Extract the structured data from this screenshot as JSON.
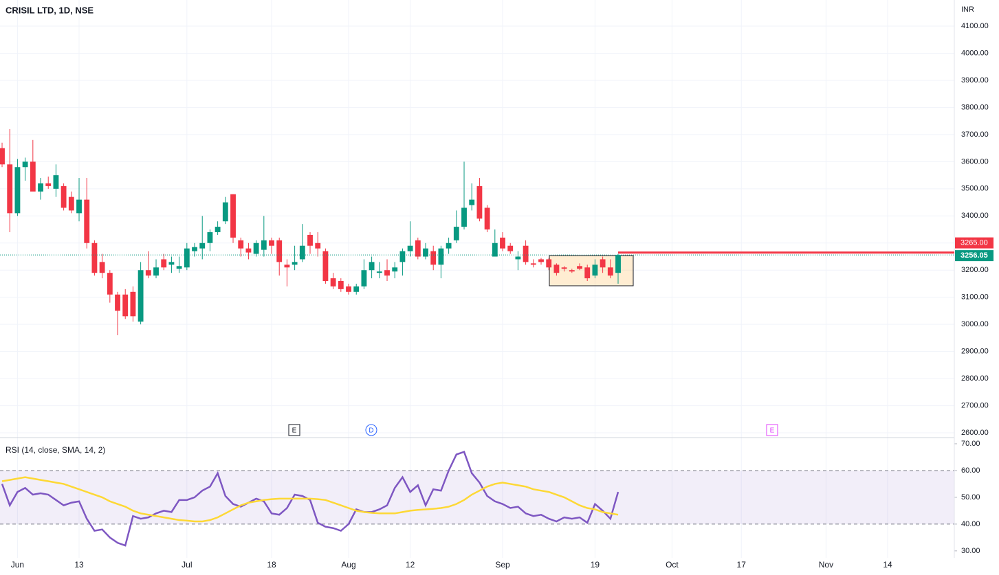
{
  "chart_data": {
    "type": "candlestick",
    "title": "CRISIL LTD, 1D, NSE",
    "currency": "INR",
    "colors": {
      "up": "#089981",
      "down": "#f23645"
    },
    "candles": {
      "open": [
        3650,
        3590,
        3410,
        3580,
        3600,
        3490,
        3520,
        3500,
        3510,
        3470,
        3410,
        3460,
        3300,
        3230,
        3190,
        3110,
        3110,
        3120,
        3010,
        3200,
        3180,
        3240,
        3220,
        3205,
        3210,
        3270,
        3280,
        3300,
        3340,
        3380,
        3480,
        3310,
        3280,
        3260,
        3275,
        3310,
        3310,
        3220,
        3220,
        3240,
        3330,
        3300,
        3270,
        3170,
        3160,
        3140,
        3120,
        3140,
        3200,
        3190,
        3200,
        3195,
        3230,
        3270,
        3310,
        3250,
        3270,
        3220,
        3280,
        3310,
        3360,
        3440,
        3510,
        3430,
        3250,
        3320,
        3290,
        3240,
        3290,
        3225,
        3240,
        3240,
        3220,
        3210,
        3200,
        3215,
        3210,
        3180,
        3240,
        3210,
        3190
      ],
      "high": [
        3670,
        3720,
        3610,
        3615,
        3680,
        3540,
        3545,
        3590,
        3520,
        3490,
        3540,
        3540,
        3310,
        3260,
        3200,
        3120,
        3130,
        3140,
        3230,
        3270,
        3240,
        3260,
        3250,
        3250,
        3300,
        3300,
        3400,
        3350,
        3380,
        3470,
        3480,
        3320,
        3300,
        3310,
        3400,
        3320,
        3320,
        3240,
        3290,
        3370,
        3340,
        3340,
        3280,
        3190,
        3170,
        3150,
        3150,
        3240,
        3250,
        3230,
        3240,
        3230,
        3280,
        3380,
        3320,
        3300,
        3290,
        3290,
        3320,
        3420,
        3600,
        3520,
        3540,
        3440,
        3350,
        3340,
        3300,
        3270,
        3310,
        3240,
        3245,
        3245,
        3225,
        3215,
        3205,
        3225,
        3220,
        3240,
        3250,
        3240,
        3260
      ],
      "low": [
        3580,
        3340,
        3400,
        3530,
        3500,
        3460,
        3500,
        3470,
        3420,
        3410,
        3380,
        3280,
        3180,
        3170,
        3080,
        2960,
        3020,
        3010,
        3000,
        3170,
        3170,
        3200,
        3190,
        3190,
        3200,
        3250,
        3240,
        3270,
        3330,
        3370,
        3300,
        3250,
        3240,
        3250,
        3250,
        3260,
        3180,
        3140,
        3200,
        3230,
        3260,
        3250,
        3150,
        3130,
        3120,
        3110,
        3110,
        3130,
        3170,
        3170,
        3160,
        3170,
        3180,
        3250,
        3240,
        3240,
        3200,
        3170,
        3260,
        3300,
        3350,
        3420,
        3380,
        3340,
        3250,
        3270,
        3260,
        3200,
        3220,
        3210,
        3220,
        3200,
        3180,
        3195,
        3190,
        3200,
        3160,
        3170,
        3190,
        3170,
        3150
      ],
      "close": [
        3590,
        3410,
        3580,
        3600,
        3490,
        3520,
        3510,
        3550,
        3430,
        3420,
        3460,
        3300,
        3190,
        3190,
        3110,
        3050,
        3030,
        3030,
        3200,
        3180,
        3210,
        3210,
        3230,
        3215,
        3280,
        3285,
        3300,
        3340,
        3360,
        3450,
        3320,
        3280,
        3265,
        3300,
        3310,
        3290,
        3230,
        3210,
        3230,
        3290,
        3290,
        3280,
        3160,
        3140,
        3130,
        3120,
        3140,
        3200,
        3230,
        3195,
        3180,
        3210,
        3270,
        3290,
        3250,
        3280,
        3220,
        3280,
        3300,
        3360,
        3430,
        3460,
        3390,
        3350,
        3300,
        3280,
        3270,
        3250,
        3230,
        3220,
        3230,
        3210,
        3190,
        3205,
        3195,
        3205,
        3170,
        3220,
        3210,
        3180,
        3256.05
      ]
    },
    "xlim": [
      -0.27,
      123.66
    ],
    "xticks": [
      {
        "value": 2,
        "label": "Jun"
      },
      {
        "value": 10,
        "label": "13"
      },
      {
        "value": 24,
        "label": "Jul"
      },
      {
        "value": 35,
        "label": "18"
      },
      {
        "value": 45,
        "label": "Aug"
      },
      {
        "value": 53,
        "label": "12"
      },
      {
        "value": 65,
        "label": "Sep"
      },
      {
        "value": 77,
        "label": "19"
      },
      {
        "value": 87,
        "label": "Oct"
      },
      {
        "value": 96,
        "label": "17"
      },
      {
        "value": 107,
        "label": "Nov"
      },
      {
        "value": 115,
        "label": "14"
      }
    ],
    "ylim": [
      2582.4,
      4196.3
    ],
    "yticks": [
      {
        "value": 2600,
        "label": "2600.00"
      },
      {
        "value": 2700,
        "label": "2700.00"
      },
      {
        "value": 2800,
        "label": "2800.00"
      },
      {
        "value": 2900,
        "label": "2900.00"
      },
      {
        "value": 3000,
        "label": "3000.00"
      },
      {
        "value": 3100,
        "label": "3100.00"
      },
      {
        "value": 3200,
        "label": "3200.00"
      },
      {
        "value": 3300,
        "label": "3300.00"
      },
      {
        "value": 3400,
        "label": "3400.00"
      },
      {
        "value": 3500,
        "label": "3500.00"
      },
      {
        "value": 3600,
        "label": "3600.00"
      },
      {
        "value": 3700,
        "label": "3700.00"
      },
      {
        "value": 3800,
        "label": "3800.00"
      },
      {
        "value": 3900,
        "label": "3900.00"
      },
      {
        "value": 4000,
        "label": "4000.00"
      },
      {
        "value": 4100,
        "label": "4100.00"
      }
    ],
    "level_line": {
      "value": 3265,
      "label": "3265.00",
      "color": "#f23645"
    },
    "last_price": {
      "value": 3256.05,
      "label": "3256.05",
      "color": "#089981"
    },
    "events": [
      {
        "label": "E",
        "color": "#131722"
      },
      {
        "label": "D",
        "color": "#2962ff"
      },
      {
        "label": "E",
        "color": "#e040fb"
      }
    ],
    "rsi": {
      "title": "RSI (14, close, SMA, 14, 2)",
      "series": [
        {
          "name": "RSI",
          "color": "#7e57c2",
          "values": [
            55,
            47,
            52,
            53.5,
            51,
            51.5,
            51,
            49,
            47,
            48,
            48.5,
            42,
            37.5,
            38,
            35,
            33,
            32,
            43,
            42,
            42.5,
            44,
            45,
            44.5,
            49,
            49,
            50,
            52.5,
            54,
            59,
            50.5,
            47.5,
            46.5,
            48,
            49.5,
            48.5,
            44,
            43.5,
            46,
            51,
            50.5,
            49,
            40.5,
            39,
            38.5,
            37.5,
            40,
            45.5,
            44.5,
            44.5,
            45.5,
            47,
            53.5,
            57.5,
            52,
            54.5,
            47,
            53,
            52.5,
            60,
            66,
            67,
            59,
            55.5,
            50.5,
            48.5,
            47.5,
            46,
            46.5,
            44,
            43,
            43.5,
            42,
            41,
            42.5,
            42,
            42.5,
            40.5,
            47.5,
            45,
            42,
            52
          ]
        },
        {
          "name": "SMA",
          "color": "#fdd835",
          "values": [
            56,
            56.5,
            57,
            57.5,
            57,
            56.5,
            56,
            55.5,
            55,
            54,
            53,
            52,
            51,
            50,
            48.5,
            47.5,
            46.5,
            45,
            44,
            43.5,
            43,
            42.5,
            42,
            41.5,
            41.3,
            41,
            41,
            41.5,
            42.5,
            44,
            45.5,
            47,
            48,
            48.5,
            49,
            49.3,
            49.5,
            49.5,
            49.5,
            49.5,
            49.5,
            49.3,
            49,
            48,
            47,
            46,
            45,
            44.5,
            44.2,
            44,
            44,
            44,
            44.5,
            45,
            45.3,
            45.5,
            45.7,
            46,
            46.5,
            47.5,
            49,
            51,
            52.5,
            54,
            55,
            55.5,
            55,
            54.5,
            54,
            53,
            52.5,
            52,
            51,
            50,
            48.5,
            47,
            46,
            45.5,
            44.5,
            44,
            43.5
          ]
        }
      ],
      "bands": [
        60,
        40
      ],
      "y2lim": [
        27.4,
        72.3
      ],
      "y2ticks": [
        {
          "value": 30,
          "label": "30.00"
        },
        {
          "value": 40,
          "label": "40.00"
        },
        {
          "value": 50,
          "label": "50.00"
        },
        {
          "value": 60,
          "label": "60.00"
        },
        {
          "value": 70,
          "label": "70.00"
        }
      ]
    }
  }
}
